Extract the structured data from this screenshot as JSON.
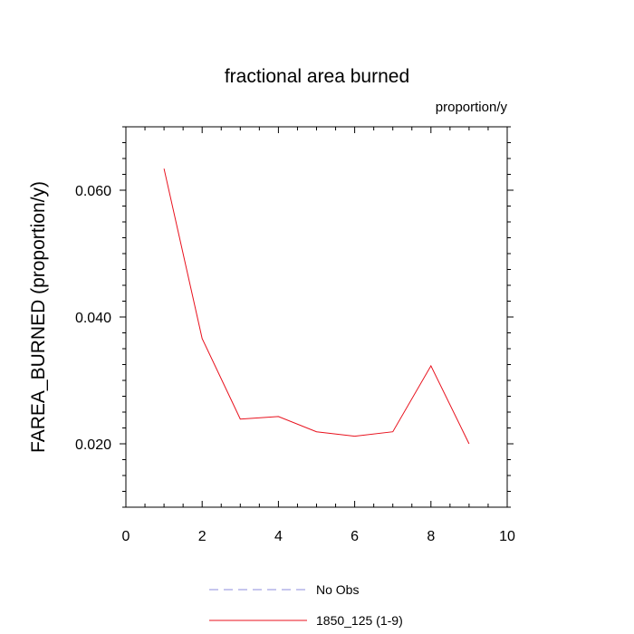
{
  "chart_data": {
    "type": "line",
    "title": "fractional area burned",
    "units_label": "proportion/y",
    "xlabel": "",
    "ylabel": "FAREA_BURNED  (proportion/y)",
    "xlim": [
      0,
      10
    ],
    "ylim": [
      0.01,
      0.07
    ],
    "x_ticks": [
      0,
      2,
      4,
      6,
      8,
      10
    ],
    "x_tick_labels": [
      "0",
      "2",
      "4",
      "6",
      "8",
      "10"
    ],
    "y_ticks": [
      0.02,
      0.04,
      0.06
    ],
    "y_tick_labels": [
      "0.020",
      "0.040",
      "0.060"
    ],
    "grid": false,
    "legend_placement": "bottom-center",
    "series": [
      {
        "name": "No Obs",
        "style": "dashed",
        "color": "#8c8cdc",
        "x": [],
        "values": []
      },
      {
        "name": "1850_125 (1-9)",
        "style": "solid",
        "color": "#e8101c",
        "x": [
          1,
          2,
          3,
          4,
          5,
          6,
          7,
          8,
          9
        ],
        "values": [
          0.0634,
          0.0366,
          0.0239,
          0.0243,
          0.0219,
          0.0212,
          0.0219,
          0.0323,
          0.02
        ]
      }
    ]
  }
}
